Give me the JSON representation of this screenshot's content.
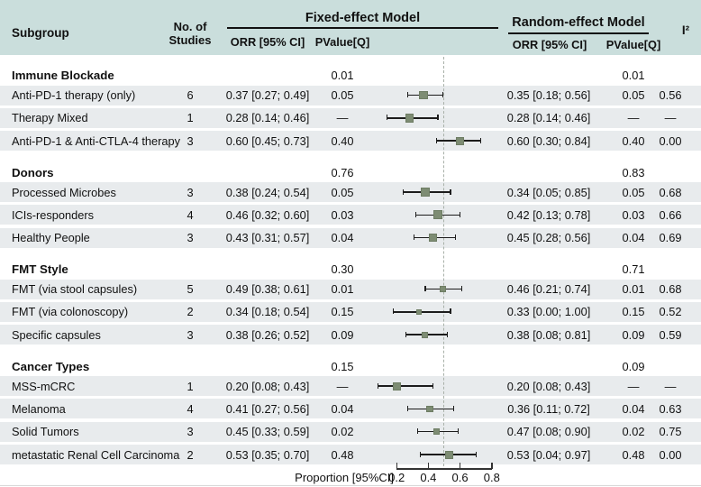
{
  "title_columns": {
    "subgroup": "Subgroup",
    "no_of_line1": "No. of",
    "no_of_line2": "Studies",
    "fixed_model": "Fixed-effect Model",
    "fixed_orr": "ORR [95% CI]",
    "fixed_pvalue": "PValue[Q]",
    "random_model": "Random-effect Model",
    "random_orr": "ORR [95% CI]",
    "random_pvalue": "PValue[Q]",
    "i2": "I²"
  },
  "axis": {
    "label": "Proportion [95%CI]",
    "tick_labels": [
      "0.2",
      "0.4",
      "0.6",
      "0.8"
    ],
    "tick_values": [
      0.2,
      0.4,
      0.6,
      0.8
    ],
    "reference_value": 0.5
  },
  "colors": {
    "header_bg": "#cadedc",
    "row_bg": "#e8ebed",
    "marker": "#7d8c73",
    "marker_border": "#6e7d64",
    "ref_line": "#a8b0a8"
  },
  "chart_data": {
    "type": "forest",
    "xlabel": "Proportion [95%CI]",
    "plotted_model": "fixed-effect",
    "x_plotted_range": [
      0,
      1
    ],
    "axis_ticks": [
      0.2,
      0.4,
      0.6,
      0.8
    ],
    "reference_line": 0.5,
    "rows": [
      {
        "kind": "section",
        "subgroup": "Immune Blockade",
        "fixed_pvalue": "0.01",
        "random_pvalue": "0.01"
      },
      {
        "kind": "study",
        "subgroup": "Anti-PD-1 therapy (only)",
        "n_studies": "6",
        "fixed_orr": "0.37 [0.27; 0.49]",
        "fixed_pvalue": "0.05",
        "est": 0.37,
        "lo": 0.27,
        "hi": 0.49,
        "marker": 7.5,
        "random_orr": "0.35 [0.18; 0.56]",
        "random_pvalue": "0.05",
        "i2": "0.56"
      },
      {
        "kind": "study",
        "subgroup": "Therapy Mixed",
        "n_studies": "1",
        "fixed_orr": "0.28 [0.14; 0.46]",
        "fixed_pvalue": "—",
        "est": 0.28,
        "lo": 0.14,
        "hi": 0.46,
        "marker": 7.5,
        "random_orr": "0.28 [0.14; 0.46]",
        "random_pvalue": "—",
        "i2": "—"
      },
      {
        "kind": "study",
        "subgroup": "Anti-PD-1 & Anti-CTLA-4 therapy",
        "n_studies": "3",
        "fixed_orr": "0.60 [0.45; 0.73]",
        "fixed_pvalue": "0.40",
        "est": 0.6,
        "lo": 0.45,
        "hi": 0.73,
        "marker": 7,
        "random_orr": "0.60 [0.30; 0.84]",
        "random_pvalue": "0.40",
        "i2": "0.00"
      },
      {
        "kind": "section",
        "subgroup": "Donors",
        "fixed_pvalue": "0.76",
        "random_pvalue": "0.83"
      },
      {
        "kind": "study",
        "subgroup": "Processed Microbes",
        "n_studies": "3",
        "fixed_orr": "0.38 [0.24; 0.54]",
        "fixed_pvalue": "0.05",
        "est": 0.38,
        "lo": 0.24,
        "hi": 0.54,
        "marker": 7.5,
        "random_orr": "0.34 [0.05; 0.85]",
        "random_pvalue": "0.05",
        "i2": "0.68"
      },
      {
        "kind": "study",
        "subgroup": "ICIs-responders",
        "n_studies": "4",
        "fixed_orr": "0.46 [0.32; 0.60]",
        "fixed_pvalue": "0.03",
        "est": 0.46,
        "lo": 0.32,
        "hi": 0.6,
        "marker": 8,
        "random_orr": "0.42 [0.13; 0.78]",
        "random_pvalue": "0.03",
        "i2": "0.66"
      },
      {
        "kind": "study",
        "subgroup": "Healthy People",
        "n_studies": "3",
        "fixed_orr": "0.43 [0.31; 0.57]",
        "fixed_pvalue": "0.04",
        "est": 0.43,
        "lo": 0.31,
        "hi": 0.57,
        "marker": 7.5,
        "random_orr": "0.45 [0.28; 0.56]",
        "random_pvalue": "0.04",
        "i2": "0.69"
      },
      {
        "kind": "section",
        "subgroup": "FMT Style",
        "fixed_pvalue": "0.30",
        "random_pvalue": "0.71"
      },
      {
        "kind": "study",
        "subgroup": "FMT (via stool capsules)",
        "n_studies": "5",
        "fixed_orr": "0.49 [0.38; 0.61]",
        "fixed_pvalue": "0.01",
        "est": 0.49,
        "lo": 0.38,
        "hi": 0.61,
        "marker": 5,
        "random_orr": "0.46 [0.21; 0.74]",
        "random_pvalue": "0.01",
        "i2": "0.68"
      },
      {
        "kind": "study",
        "subgroup": "FMT (via colonoscopy)",
        "n_studies": "2",
        "fixed_orr": "0.34 [0.18; 0.54]",
        "fixed_pvalue": "0.15",
        "est": 0.34,
        "lo": 0.18,
        "hi": 0.54,
        "marker": 4.5,
        "random_orr": "0.33 [0.00; 1.00]",
        "random_pvalue": "0.15",
        "i2": "0.52"
      },
      {
        "kind": "study",
        "subgroup": "Specific capsules",
        "n_studies": "3",
        "fixed_orr": "0.38 [0.26; 0.52]",
        "fixed_pvalue": "0.09",
        "est": 0.38,
        "lo": 0.26,
        "hi": 0.52,
        "marker": 5,
        "random_orr": "0.38 [0.08; 0.81]",
        "random_pvalue": "0.09",
        "i2": "0.59"
      },
      {
        "kind": "section",
        "subgroup": "Cancer Types",
        "fixed_pvalue": "0.15",
        "random_pvalue": "0.09"
      },
      {
        "kind": "study",
        "subgroup": "MSS-mCRC",
        "n_studies": "1",
        "fixed_orr": "0.20 [0.08; 0.43]",
        "fixed_pvalue": "—",
        "est": 0.2,
        "lo": 0.08,
        "hi": 0.43,
        "marker": 7,
        "random_orr": "0.20 [0.08; 0.43]",
        "random_pvalue": "—",
        "i2": "—"
      },
      {
        "kind": "study",
        "subgroup": "Melanoma",
        "n_studies": "4",
        "fixed_orr": "0.41 [0.27; 0.56]",
        "fixed_pvalue": "0.04",
        "est": 0.41,
        "lo": 0.27,
        "hi": 0.56,
        "marker": 5.5,
        "random_orr": "0.36 [0.11; 0.72]",
        "random_pvalue": "0.04",
        "i2": "0.63"
      },
      {
        "kind": "study",
        "subgroup": "Solid Tumors",
        "n_studies": "3",
        "fixed_orr": "0.45 [0.33; 0.59]",
        "fixed_pvalue": "0.02",
        "est": 0.45,
        "lo": 0.33,
        "hi": 0.59,
        "marker": 5,
        "random_orr": "0.47 [0.08; 0.90]",
        "random_pvalue": "0.02",
        "i2": "0.75"
      },
      {
        "kind": "study",
        "subgroup": "metastatic Renal Cell Carcinoma",
        "n_studies": "2",
        "fixed_orr": "0.53 [0.35; 0.70]",
        "fixed_pvalue": "0.48",
        "est": 0.53,
        "lo": 0.35,
        "hi": 0.7,
        "marker": 7,
        "random_orr": "0.53 [0.04; 0.97]",
        "random_pvalue": "0.48",
        "i2": "0.00"
      }
    ]
  }
}
